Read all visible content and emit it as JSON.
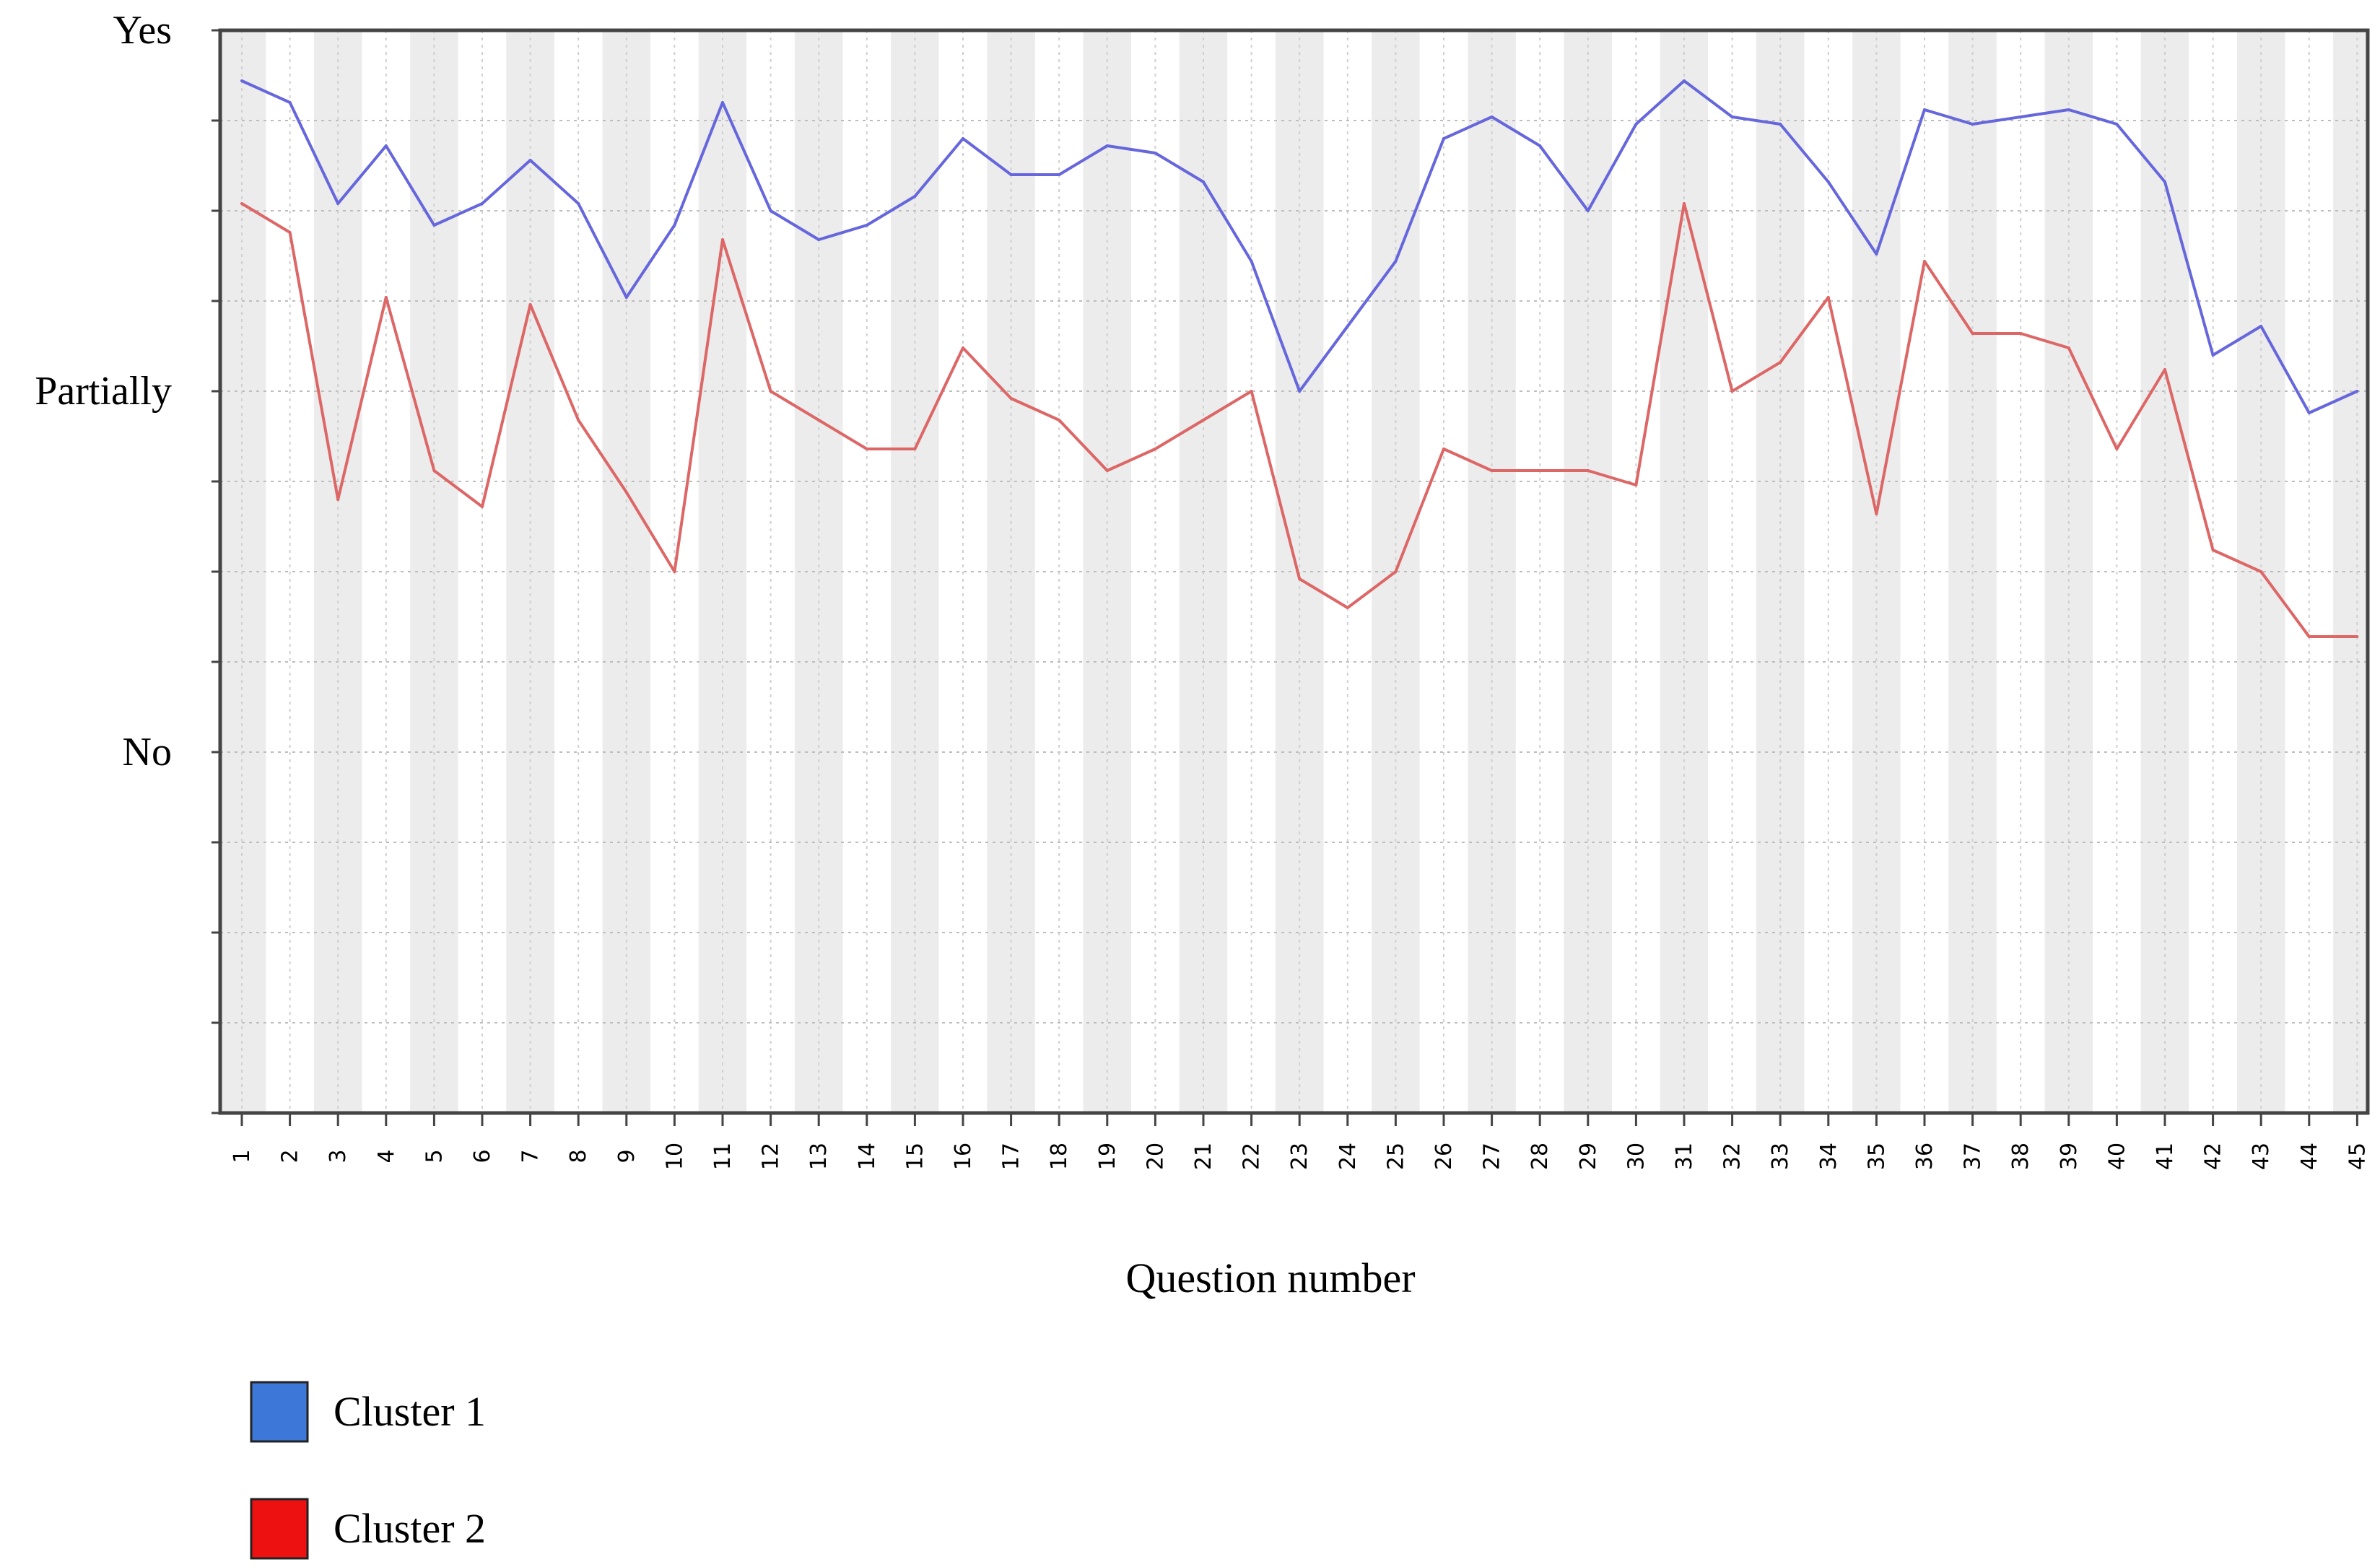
{
  "chart_data": {
    "type": "line",
    "xlabel": "Question number",
    "ylabel": "",
    "y_tick_labels": [
      {
        "value": 1.0,
        "label": "Yes"
      },
      {
        "value": 0.5,
        "label": "Partially"
      },
      {
        "value": 0.0,
        "label": "No"
      }
    ],
    "ylim": [
      -0.5,
      1.0
    ],
    "grid": true,
    "legend_position": "bottom-left",
    "x": [
      1,
      2,
      3,
      4,
      5,
      6,
      7,
      8,
      9,
      10,
      11,
      12,
      13,
      14,
      15,
      16,
      17,
      18,
      19,
      20,
      21,
      22,
      23,
      24,
      25,
      26,
      27,
      28,
      29,
      30,
      31,
      32,
      33,
      34,
      35,
      36,
      37,
      38,
      39,
      40,
      41,
      42,
      43,
      44,
      45
    ],
    "series": [
      {
        "name": "Cluster 1",
        "color": "#6666dd",
        "legend_color": "#3d78d8",
        "values": [
          0.93,
          0.9,
          0.76,
          0.84,
          0.73,
          0.76,
          0.82,
          0.76,
          0.63,
          0.73,
          0.9,
          0.75,
          0.71,
          0.73,
          0.77,
          0.85,
          0.8,
          0.8,
          0.84,
          0.83,
          0.79,
          0.68,
          0.5,
          0.59,
          0.68,
          0.85,
          0.88,
          0.84,
          0.75,
          0.87,
          0.93,
          0.88,
          0.87,
          0.79,
          0.69,
          0.89,
          0.87,
          0.88,
          0.89,
          0.87,
          0.79,
          0.55,
          0.59,
          0.47,
          0.5
        ]
      },
      {
        "name": "Cluster 2",
        "color": "#dd6666",
        "legend_color": "#ee1111",
        "values": [
          0.76,
          0.72,
          0.35,
          0.63,
          0.39,
          0.34,
          0.62,
          0.46,
          0.36,
          0.25,
          0.71,
          0.5,
          0.46,
          0.42,
          0.42,
          0.56,
          0.49,
          0.46,
          0.39,
          0.42,
          0.46,
          0.5,
          0.24,
          0.2,
          0.25,
          0.42,
          0.39,
          0.39,
          0.39,
          0.37,
          0.76,
          0.5,
          0.54,
          0.63,
          0.33,
          0.68,
          0.58,
          0.58,
          0.56,
          0.42,
          0.53,
          0.28,
          0.25,
          0.16,
          0.16
        ]
      }
    ]
  }
}
